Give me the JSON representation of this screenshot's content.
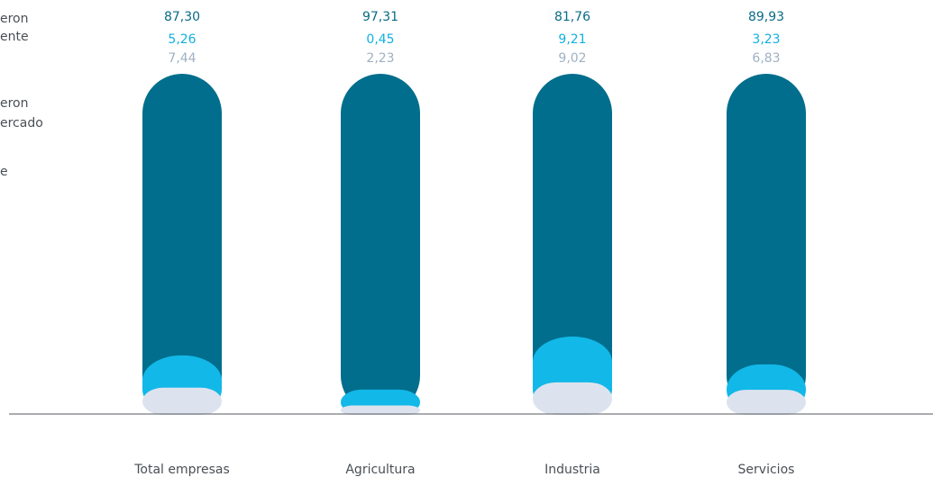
{
  "chart_data": {
    "type": "bar",
    "stacked": true,
    "categories": [
      "Total empresas",
      "Agricultura",
      "Industria",
      "Servicios"
    ],
    "series": [
      {
        "name": "",
        "color": "#006e8c",
        "values": [
          87.3,
          97.31,
          81.76,
          89.93
        ],
        "labels": [
          "87,30",
          "97,31",
          "81,76",
          "89,93"
        ]
      },
      {
        "name": "",
        "color": "#12b8e8",
        "values": [
          5.26,
          0.45,
          9.21,
          3.23
        ],
        "labels": [
          "5,26",
          "0,45",
          "9,21",
          "3,23"
        ]
      },
      {
        "name": "",
        "color": "#dde3ee",
        "values": [
          7.44,
          2.23,
          9.02,
          6.83
        ],
        "labels": [
          "7,44",
          "2,23",
          "9,02",
          "6,83"
        ]
      }
    ],
    "ylim": [
      0,
      100
    ],
    "legend": {
      "placement": "left",
      "items": [
        {
          "lines": [
            "eron",
            "ente"
          ]
        },
        {
          "lines": [
            "eron",
            "ercado"
          ]
        },
        {
          "lines": [
            "e"
          ]
        }
      ]
    },
    "label_colors": [
      "#0a6b85",
      "#12b0e0",
      "#9fb1c2"
    ]
  }
}
